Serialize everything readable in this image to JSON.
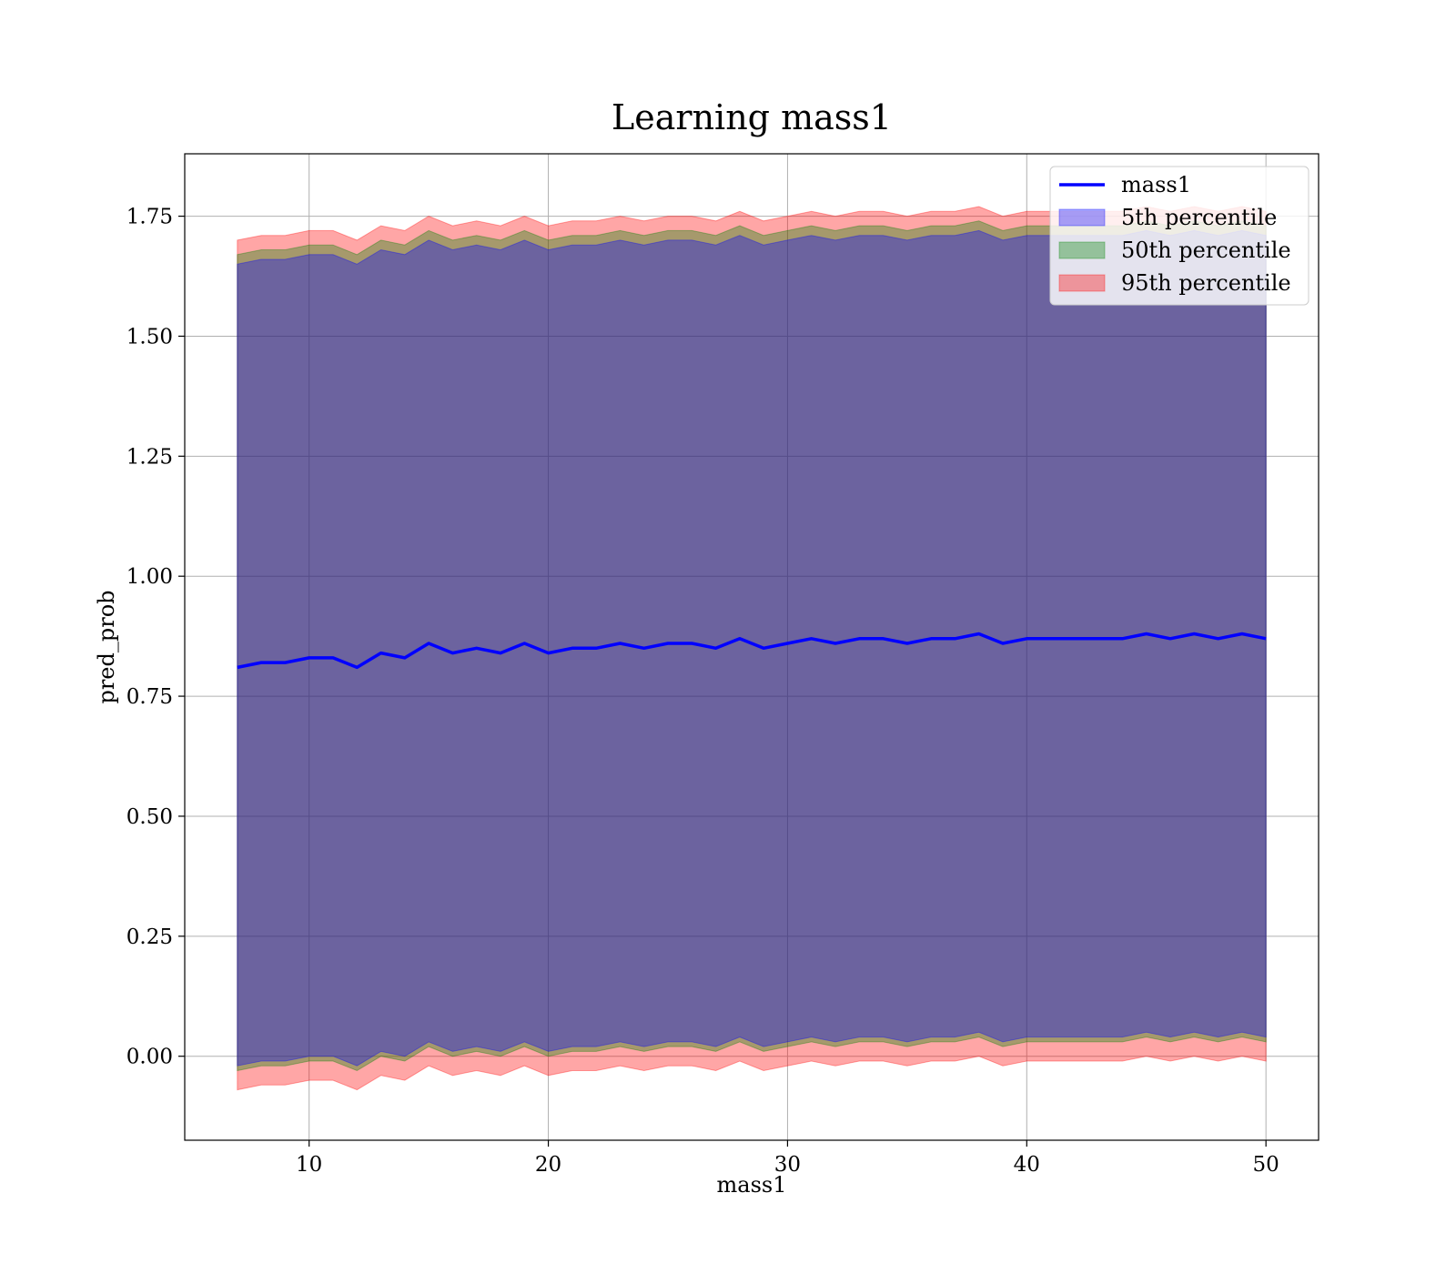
{
  "chart_data": {
    "type": "area",
    "title": "Learning mass1",
    "xlabel": "mass1",
    "ylabel": "pred_prob",
    "xlim": [
      4.8,
      52.2
    ],
    "ylim": [
      -0.175,
      1.88
    ],
    "xticks": [
      10,
      20,
      30,
      40,
      50
    ],
    "yticks": [
      0.0,
      0.25,
      0.5,
      0.75,
      1.0,
      1.25,
      1.5,
      1.75
    ],
    "xtick_labels": [
      "10",
      "20",
      "30",
      "40",
      "50"
    ],
    "ytick_labels": [
      "0.00",
      "0.25",
      "0.50",
      "0.75",
      "1.00",
      "1.25",
      "1.50",
      "1.75"
    ],
    "grid": true,
    "legend_position": "top-right",
    "x": [
      7,
      8,
      9,
      10,
      11,
      12,
      13,
      14,
      15,
      16,
      17,
      18,
      19,
      20,
      21,
      22,
      23,
      24,
      25,
      26,
      27,
      28,
      29,
      30,
      31,
      32,
      33,
      34,
      35,
      36,
      37,
      38,
      39,
      40,
      41,
      42,
      43,
      44,
      45,
      46,
      47,
      48,
      49,
      50
    ],
    "series": [
      {
        "name": "mass1",
        "kind": "line",
        "color": "#0000ff",
        "values": [
          0.81,
          0.82,
          0.82,
          0.83,
          0.83,
          0.81,
          0.84,
          0.83,
          0.86,
          0.84,
          0.85,
          0.84,
          0.86,
          0.84,
          0.85,
          0.85,
          0.86,
          0.85,
          0.86,
          0.86,
          0.85,
          0.87,
          0.85,
          0.86,
          0.87,
          0.86,
          0.87,
          0.87,
          0.86,
          0.87,
          0.87,
          0.88,
          0.86,
          0.87,
          0.87,
          0.87,
          0.87,
          0.87,
          0.88,
          0.87,
          0.88,
          0.87,
          0.88,
          0.87
        ]
      },
      {
        "name": "5th percentile",
        "kind": "band",
        "color": "#0000ff",
        "lower": [
          -0.02,
          -0.01,
          -0.01,
          0.0,
          0.0,
          -0.02,
          0.01,
          0.0,
          0.03,
          0.01,
          0.02,
          0.01,
          0.03,
          0.01,
          0.02,
          0.02,
          0.03,
          0.02,
          0.03,
          0.03,
          0.02,
          0.04,
          0.02,
          0.03,
          0.04,
          0.03,
          0.04,
          0.04,
          0.03,
          0.04,
          0.04,
          0.05,
          0.03,
          0.04,
          0.04,
          0.04,
          0.04,
          0.04,
          0.05,
          0.04,
          0.05,
          0.04,
          0.05,
          0.04
        ],
        "upper": [
          1.65,
          1.66,
          1.66,
          1.67,
          1.67,
          1.65,
          1.68,
          1.67,
          1.7,
          1.68,
          1.69,
          1.68,
          1.7,
          1.68,
          1.69,
          1.69,
          1.7,
          1.69,
          1.7,
          1.7,
          1.69,
          1.71,
          1.69,
          1.7,
          1.71,
          1.7,
          1.71,
          1.71,
          1.7,
          1.71,
          1.71,
          1.72,
          1.7,
          1.71,
          1.71,
          1.71,
          1.71,
          1.71,
          1.72,
          1.71,
          1.72,
          1.71,
          1.72,
          1.71
        ]
      },
      {
        "name": "50th percentile",
        "kind": "band",
        "color": "#008000",
        "lower": [
          -0.03,
          -0.02,
          -0.02,
          -0.01,
          -0.01,
          -0.03,
          0.0,
          -0.01,
          0.02,
          0.0,
          0.01,
          0.0,
          0.02,
          0.0,
          0.01,
          0.01,
          0.02,
          0.01,
          0.02,
          0.02,
          0.01,
          0.03,
          0.01,
          0.02,
          0.03,
          0.02,
          0.03,
          0.03,
          0.02,
          0.03,
          0.03,
          0.04,
          0.02,
          0.03,
          0.03,
          0.03,
          0.03,
          0.03,
          0.04,
          0.03,
          0.04,
          0.03,
          0.04,
          0.03
        ],
        "upper": [
          1.67,
          1.68,
          1.68,
          1.69,
          1.69,
          1.67,
          1.7,
          1.69,
          1.72,
          1.7,
          1.71,
          1.7,
          1.72,
          1.7,
          1.71,
          1.71,
          1.72,
          1.71,
          1.72,
          1.72,
          1.71,
          1.73,
          1.71,
          1.72,
          1.73,
          1.72,
          1.73,
          1.73,
          1.72,
          1.73,
          1.73,
          1.74,
          1.72,
          1.73,
          1.73,
          1.73,
          1.73,
          1.73,
          1.74,
          1.73,
          1.74,
          1.73,
          1.74,
          1.73
        ]
      },
      {
        "name": "95th percentile",
        "kind": "band",
        "color": "#ff0000",
        "lower": [
          -0.07,
          -0.06,
          -0.06,
          -0.05,
          -0.05,
          -0.07,
          -0.04,
          -0.05,
          -0.02,
          -0.04,
          -0.03,
          -0.04,
          -0.02,
          -0.04,
          -0.03,
          -0.03,
          -0.02,
          -0.03,
          -0.02,
          -0.02,
          -0.03,
          -0.01,
          -0.03,
          -0.02,
          -0.01,
          -0.02,
          -0.01,
          -0.01,
          -0.02,
          -0.01,
          -0.01,
          0.0,
          -0.02,
          -0.01,
          -0.01,
          -0.01,
          -0.01,
          -0.01,
          0.0,
          -0.01,
          0.0,
          -0.01,
          0.0,
          -0.01
        ],
        "upper": [
          1.7,
          1.71,
          1.71,
          1.72,
          1.72,
          1.7,
          1.73,
          1.72,
          1.75,
          1.73,
          1.74,
          1.73,
          1.75,
          1.73,
          1.74,
          1.74,
          1.75,
          1.74,
          1.75,
          1.75,
          1.74,
          1.76,
          1.74,
          1.75,
          1.76,
          1.75,
          1.76,
          1.76,
          1.75,
          1.76,
          1.76,
          1.77,
          1.75,
          1.76,
          1.76,
          1.76,
          1.76,
          1.76,
          1.77,
          1.76,
          1.77,
          1.76,
          1.77,
          1.76
        ]
      }
    ]
  }
}
